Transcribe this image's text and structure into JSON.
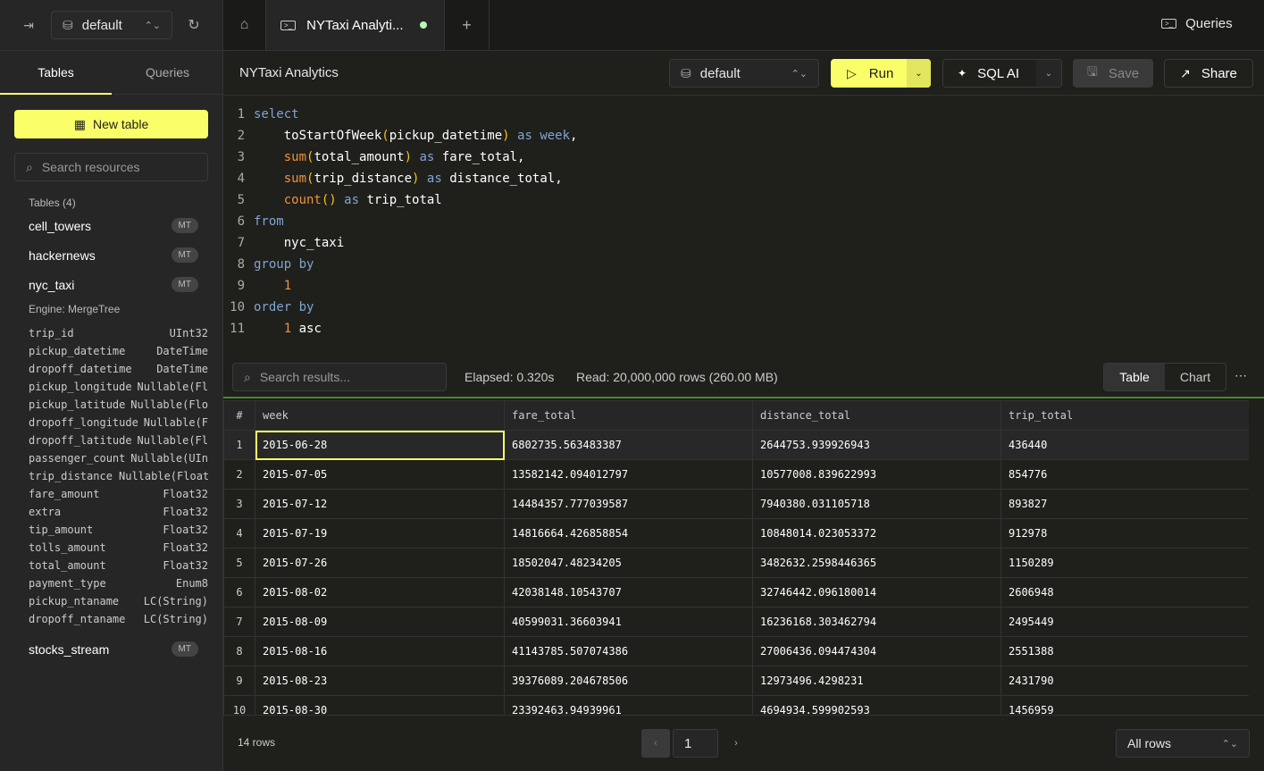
{
  "colors": {
    "accent": "#faff69",
    "success": "#3f8f2a",
    "unsaved_dot": "#b9f5b9"
  },
  "sidebar": {
    "database": "default",
    "tabs": [
      "Tables",
      "Queries"
    ],
    "new_table_label": "New table",
    "search_placeholder": "Search resources",
    "tables_heading": "Tables (4)",
    "tables": [
      {
        "name": "cell_towers",
        "badge": "MT"
      },
      {
        "name": "hackernews",
        "badge": "MT"
      },
      {
        "name": "nyc_taxi",
        "badge": "MT"
      },
      {
        "name": "stocks_stream",
        "badge": "MT"
      }
    ],
    "expanded_engine": "Engine: MergeTree",
    "columns": [
      [
        "trip_id",
        "UInt32"
      ],
      [
        "pickup_datetime",
        "DateTime"
      ],
      [
        "dropoff_datetime",
        "DateTime"
      ],
      [
        "pickup_longitude",
        "Nullable(Fl"
      ],
      [
        "pickup_latitude",
        "Nullable(Flo"
      ],
      [
        "dropoff_longitude",
        "Nullable(F"
      ],
      [
        "dropoff_latitude",
        "Nullable(Fl"
      ],
      [
        "passenger_count",
        "Nullable(UIn"
      ],
      [
        "trip_distance",
        "Nullable(Float"
      ],
      [
        "fare_amount",
        "Float32"
      ],
      [
        "extra",
        "Float32"
      ],
      [
        "tip_amount",
        "Float32"
      ],
      [
        "tolls_amount",
        "Float32"
      ],
      [
        "total_amount",
        "Float32"
      ],
      [
        "payment_type",
        "Enum8"
      ],
      [
        "pickup_ntaname",
        "LC(String)"
      ],
      [
        "dropoff_ntaname",
        "LC(String)"
      ]
    ]
  },
  "tabbar": {
    "active_tab": "NYTaxi Analyti...",
    "queries_label": "Queries"
  },
  "titlebar": {
    "title": "NYTaxi Analytics",
    "database": "default",
    "run": "Run",
    "sql_ai": "SQL AI",
    "save": "Save",
    "share": "Share"
  },
  "editor": {
    "lines": [
      [
        [
          "kw",
          "select"
        ]
      ],
      [
        [
          "",
          "    toStartOfWeek"
        ],
        [
          "par",
          "("
        ],
        [
          "",
          "pickup_datetime"
        ],
        [
          "par",
          ")"
        ],
        [
          "kw",
          " as week"
        ],
        [
          "",
          ","
        ]
      ],
      [
        [
          "fn",
          "    sum"
        ],
        [
          "par",
          "("
        ],
        [
          "",
          "total_amount"
        ],
        [
          "par",
          ")"
        ],
        [
          "kw",
          " as"
        ],
        [
          "",
          " fare_total,"
        ]
      ],
      [
        [
          "fn",
          "    sum"
        ],
        [
          "par",
          "("
        ],
        [
          "",
          "trip_distance"
        ],
        [
          "par",
          ")"
        ],
        [
          "kw",
          " as"
        ],
        [
          "",
          " distance_total,"
        ]
      ],
      [
        [
          "fn",
          "    count"
        ],
        [
          "par",
          "()"
        ],
        [
          "kw",
          " as"
        ],
        [
          "",
          " trip_total"
        ]
      ],
      [
        [
          "kw",
          "from"
        ]
      ],
      [
        [
          "",
          "    nyc_taxi"
        ]
      ],
      [
        [
          "kw",
          "group by"
        ]
      ],
      [
        [
          "num",
          "    1"
        ]
      ],
      [
        [
          "kw",
          "order by"
        ]
      ],
      [
        [
          "num",
          "    1"
        ],
        [
          "",
          " asc"
        ]
      ]
    ]
  },
  "results": {
    "search_placeholder": "Search results...",
    "elapsed": "Elapsed: 0.320s",
    "read": "Read: 20,000,000 rows (260.00 MB)",
    "view_tabs": [
      "Table",
      "Chart"
    ],
    "columns": [
      "#",
      "week",
      "fare_total",
      "distance_total",
      "trip_total"
    ],
    "rows": [
      [
        "1",
        "2015-06-28",
        "6802735.563483387",
        "2644753.939926943",
        "436440"
      ],
      [
        "2",
        "2015-07-05",
        "13582142.094012797",
        "10577008.839622993",
        "854776"
      ],
      [
        "3",
        "2015-07-12",
        "14484357.777039587",
        "7940380.031105718",
        "893827"
      ],
      [
        "4",
        "2015-07-19",
        "14816664.426858854",
        "10848014.023053372",
        "912978"
      ],
      [
        "5",
        "2015-07-26",
        "18502047.48234205",
        "3482632.2598446365",
        "1150289"
      ],
      [
        "6",
        "2015-08-02",
        "42038148.10543707",
        "32746442.096180014",
        "2606948"
      ],
      [
        "7",
        "2015-08-09",
        "40599031.36603941",
        "16236168.303462794",
        "2495449"
      ],
      [
        "8",
        "2015-08-16",
        "41143785.507074386",
        "27006436.094474304",
        "2551388"
      ],
      [
        "9",
        "2015-08-23",
        "39376089.204678506",
        "12973496.4298231",
        "2431790"
      ],
      [
        "10",
        "2015-08-30",
        "23392463.94939961",
        "4694934.599902593",
        "1456959"
      ]
    ],
    "row_count": "14 rows",
    "page": "1",
    "rows_select": "All rows"
  }
}
